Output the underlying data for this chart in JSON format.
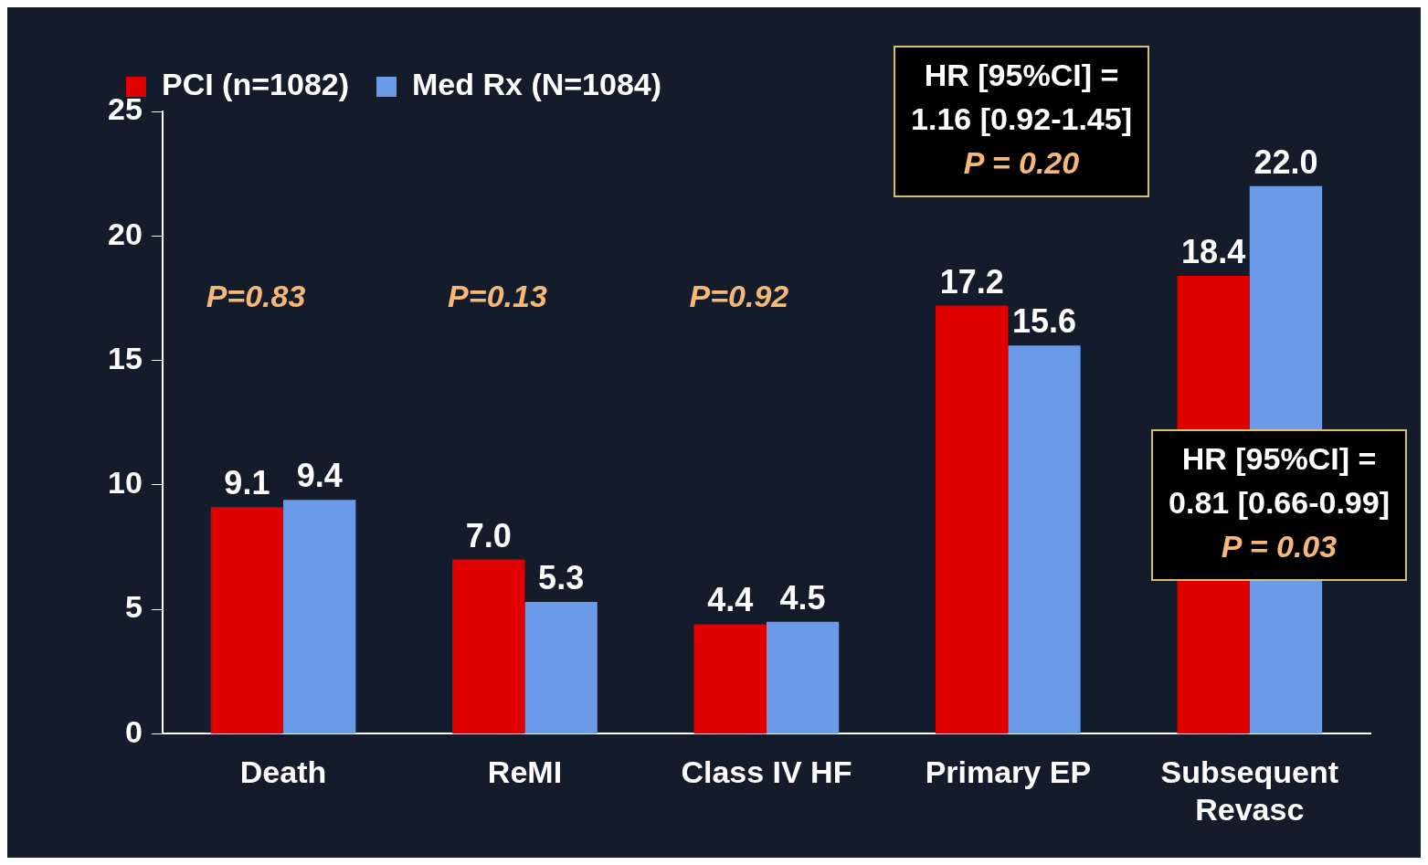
{
  "chart_data": {
    "type": "bar",
    "categories": [
      "Death",
      "ReMI",
      "Class IV HF",
      "Primary EP",
      "Subsequent\nRevasc"
    ],
    "series": [
      {
        "name": "PCI (n=1082)",
        "color": "#e00000",
        "values": [
          9.1,
          7.0,
          4.4,
          17.2,
          18.4
        ],
        "value_labels": [
          "9.1",
          "7.0",
          "4.4",
          "17.2",
          "18.4"
        ]
      },
      {
        "name": "Med Rx (N=1084)",
        "color": "#6b9be8",
        "values": [
          9.4,
          5.3,
          4.5,
          15.6,
          22.0
        ],
        "value_labels": [
          "9.4",
          "5.3",
          "4.5",
          "15.6",
          "22.0"
        ]
      }
    ],
    "ylim": [
      0,
      25
    ],
    "yticks": [
      0,
      5,
      10,
      15,
      20,
      25
    ],
    "grid": false,
    "legend": "top left",
    "annotations": [
      "P=0.83",
      "P=0.13",
      "P=0.92",
      "HR [95%CI] =\n1.16 [0.92-1.45]\nP = 0.20",
      "HR [95%CI] =\n0.81 [0.66-0.99]\nP = 0.03"
    ]
  }
}
